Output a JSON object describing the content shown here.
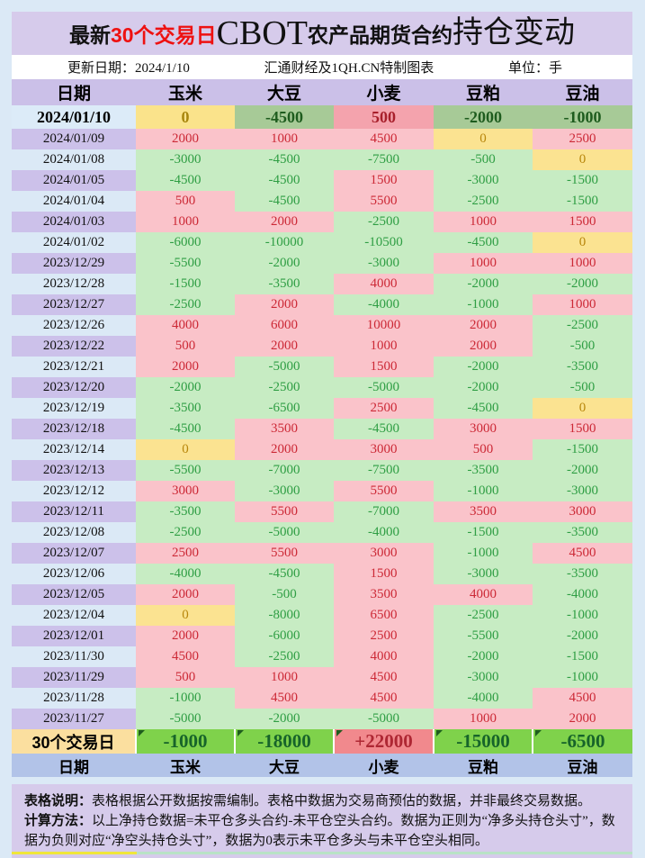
{
  "title": {
    "prefix": "最新",
    "highlight": "30个交易日",
    "brand": "CBOT",
    "mid": "农产品期货合约",
    "suffix": "持仓变动"
  },
  "info": {
    "update_date": "更新日期：2024/1/10",
    "source": "汇通财经及1QH.CN特制图表",
    "unit": "单位：手"
  },
  "chart_data": {
    "type": "table",
    "title": "最新30个交易日CBOT农产品期货合约持仓变动",
    "unit": "手",
    "columns": [
      "日期",
      "玉米",
      "大豆",
      "小麦",
      "豆粕",
      "豆油"
    ],
    "rows": [
      {
        "date": "2024/01/10",
        "values": [
          0,
          -4500,
          500,
          -2000,
          -1000
        ]
      },
      {
        "date": "2024/01/09",
        "values": [
          2000,
          1000,
          4500,
          0,
          2500
        ]
      },
      {
        "date": "2024/01/08",
        "values": [
          -3000,
          -4500,
          -7500,
          -500,
          0
        ]
      },
      {
        "date": "2024/01/05",
        "values": [
          -4500,
          -4500,
          1500,
          -3000,
          -1500
        ]
      },
      {
        "date": "2024/01/04",
        "values": [
          500,
          -4500,
          5500,
          -2500,
          -1500
        ]
      },
      {
        "date": "2024/01/03",
        "values": [
          1000,
          2000,
          -2500,
          1000,
          1500
        ]
      },
      {
        "date": "2024/01/02",
        "values": [
          -6000,
          -10000,
          -10500,
          -4500,
          0
        ]
      },
      {
        "date": "2023/12/29",
        "values": [
          -5500,
          -2000,
          -3000,
          1000,
          1000
        ]
      },
      {
        "date": "2023/12/28",
        "values": [
          -1500,
          -3500,
          4000,
          -2000,
          -2000
        ]
      },
      {
        "date": "2023/12/27",
        "values": [
          -2500,
          2000,
          -4000,
          -1000,
          1000
        ]
      },
      {
        "date": "2023/12/26",
        "values": [
          4000,
          6000,
          10000,
          2000,
          -2500
        ]
      },
      {
        "date": "2023/12/22",
        "values": [
          500,
          2000,
          1000,
          2000,
          -500
        ]
      },
      {
        "date": "2023/12/21",
        "values": [
          2000,
          -5000,
          1500,
          -2000,
          -3500
        ]
      },
      {
        "date": "2023/12/20",
        "values": [
          -2000,
          -2500,
          -5000,
          -2000,
          -500
        ]
      },
      {
        "date": "2023/12/19",
        "values": [
          -3500,
          -6500,
          2500,
          -4500,
          0
        ]
      },
      {
        "date": "2023/12/18",
        "values": [
          -4500,
          3500,
          -4500,
          3000,
          1500
        ]
      },
      {
        "date": "2023/12/14",
        "values": [
          0,
          2000,
          3000,
          500,
          -1500
        ]
      },
      {
        "date": "2023/12/13",
        "values": [
          -5500,
          -7000,
          -7500,
          -3500,
          -2000
        ]
      },
      {
        "date": "2023/12/12",
        "values": [
          3000,
          -3000,
          5500,
          -1000,
          -3000
        ]
      },
      {
        "date": "2023/12/11",
        "values": [
          -3500,
          5500,
          -7000,
          3500,
          3000
        ]
      },
      {
        "date": "2023/12/08",
        "values": [
          -2500,
          -5000,
          -4000,
          -1500,
          -3500
        ]
      },
      {
        "date": "2023/12/07",
        "values": [
          2500,
          5500,
          3000,
          -1000,
          4500
        ]
      },
      {
        "date": "2023/12/06",
        "values": [
          -4000,
          -4500,
          1500,
          -3000,
          -3500
        ]
      },
      {
        "date": "2023/12/05",
        "values": [
          2000,
          -500,
          3500,
          4000,
          -4000
        ]
      },
      {
        "date": "2023/12/04",
        "values": [
          0,
          -8000,
          6500,
          -2500,
          -1000
        ]
      },
      {
        "date": "2023/12/01",
        "values": [
          2000,
          -6000,
          2500,
          -5500,
          -2000
        ]
      },
      {
        "date": "2023/11/30",
        "values": [
          4500,
          -2500,
          4000,
          -2000,
          -1500
        ]
      },
      {
        "date": "2023/11/29",
        "values": [
          500,
          1000,
          4500,
          -3000,
          -1000
        ]
      },
      {
        "date": "2023/11/28",
        "values": [
          -1000,
          4500,
          4500,
          -4000,
          4500
        ]
      },
      {
        "date": "2023/11/27",
        "values": [
          -5000,
          -2000,
          -5000,
          1000,
          2000
        ]
      }
    ],
    "summary": {
      "label": "30个交易日",
      "values": [
        "-1000",
        "-18000",
        "+22000",
        "-15000",
        "-6500"
      ]
    }
  },
  "footer": {
    "note_label": "表格说明：",
    "note": "表格根据公开数据按需编制。表格中数据为交易商预估的数据，并非最终交易数据。",
    "method_label": "计算方法：",
    "method": "以上净持仓数据=未平仓多头合约-未平仓空头合约。数据为正则为“净多头持仓头寸”，数据为负则对应“净空头持仓头寸”，数据为0表示未平仓多头与未平仓空头相同。"
  },
  "colors": {
    "page_bg": "#dbe9f6",
    "panel_purple": "#d6cbeb",
    "header_purple": "#cbc0e8",
    "date_lavender": "#ccc1ea",
    "date_blue": "#dbe9f6",
    "positive_bg": "#fac3ca",
    "positive_text": "#cc2936",
    "negative_bg": "#c7ecc3",
    "negative_text": "#2f9e44",
    "zero_bg": "#fbe391",
    "zero_text": "#b8860b",
    "latest_positive_bg": "#f4a3ad",
    "latest_negative_bg": "#a7ca97",
    "latest_zero_bg": "#fae38b",
    "summary_negative_bg": "#7fd24b",
    "summary_positive_bg": "#f1898d",
    "summary_label_bg": "#fbdf9f",
    "bottom_header_bg": "#b2c3e8",
    "title_highlight": "#ee1111"
  }
}
